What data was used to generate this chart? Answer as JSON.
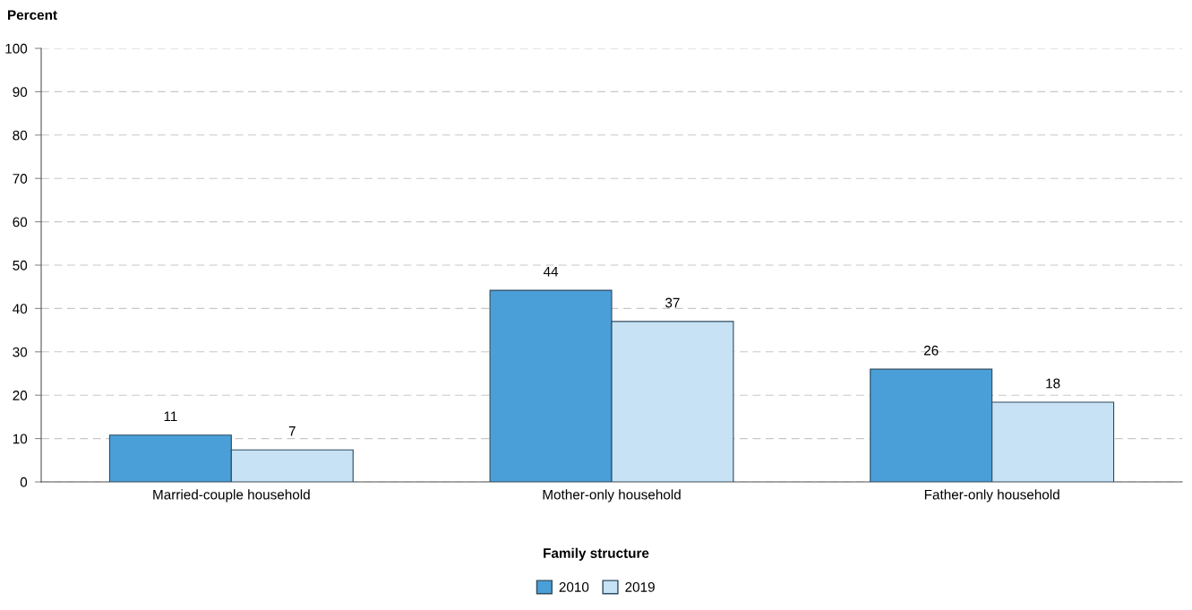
{
  "chart_data": {
    "type": "bar",
    "ylabel": "Percent",
    "legend_title": "Family structure",
    "categories": [
      "Married-couple household",
      "Mother-only household",
      "Father-only household"
    ],
    "series": [
      {
        "name": "2010",
        "color": "#4a9fd8",
        "values": [
          10.8,
          44.2,
          26.0
        ],
        "value_labels": [
          "11",
          "44",
          "26"
        ]
      },
      {
        "name": "2019",
        "color": "#c7e2f5",
        "values": [
          7.4,
          37.0,
          18.4
        ],
        "value_labels": [
          "7",
          "37",
          "18"
        ]
      }
    ],
    "ylim": [
      0,
      100
    ],
    "yticks": [
      0,
      10,
      20,
      30,
      40,
      50,
      60,
      70,
      80,
      90,
      100
    ],
    "grid": "y",
    "legend": "bottom"
  }
}
